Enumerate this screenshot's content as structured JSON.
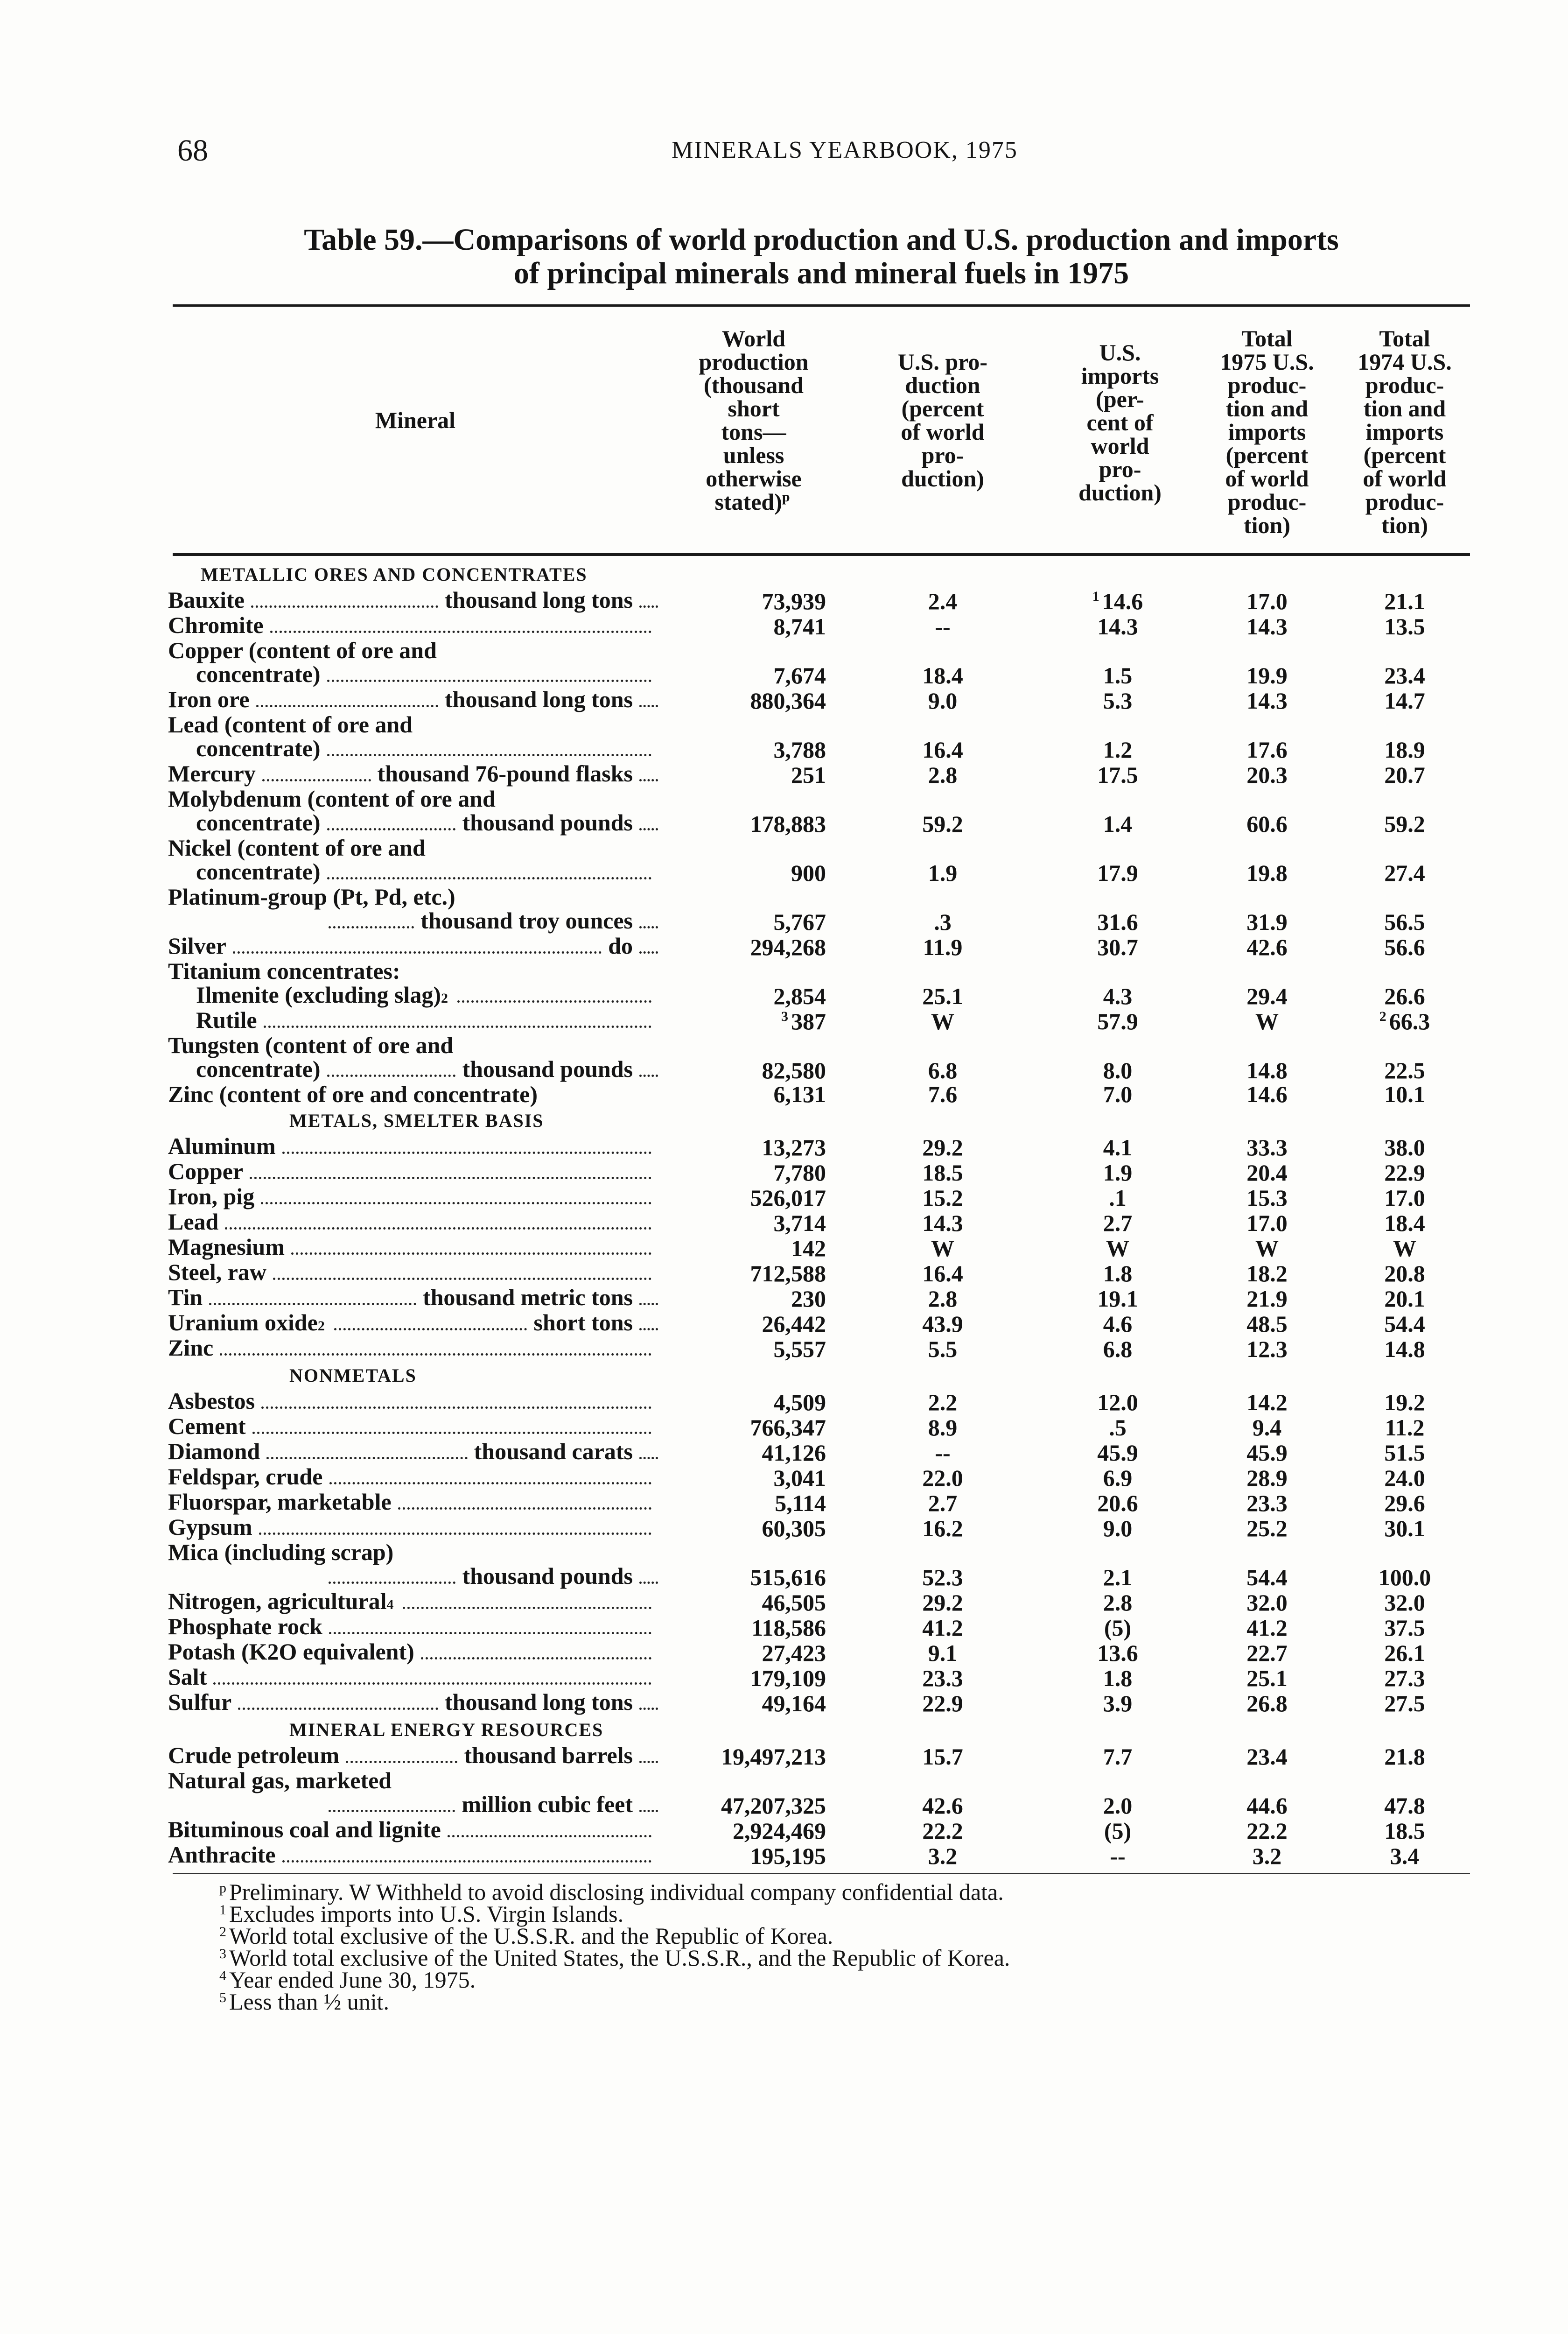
{
  "page": {
    "number": "68",
    "running_head": "MINERALS YEARBOOK, 1975"
  },
  "table": {
    "title_line1": "Table 59.—Comparisons of world production and U.S. production and imports",
    "title_line2": "of principal minerals and mineral fuels in 1975",
    "columns": [
      "Mineral",
      "World\nproduction\n(thousand\nshort\ntons—\nunless\notherwise\nstated)",
      "U.S. pro-\nduction\n(percent\nof world\npro-\nduction)",
      "U.S.\nimports\n(per-\ncent of\nworld\npro-\nduction)",
      "Total\n1975 U.S.\nproduc-\ntion and\nimports\n(percent\nof world\nproduc-\ntion)",
      "Total\n1974 U.S.\nproduc-\ntion and\nimports\n(percent\nof world\nproduc-\ntion)"
    ],
    "world_header_sup": "p",
    "sections": [
      {
        "heading": "METALLIC ORES AND CONCENTRATES",
        "rows": [
          {
            "pre": [],
            "label": "Bauxite",
            "unit": "thousand long tons",
            "values": [
              "73,939",
              "2.4",
              "14.6",
              "17.0",
              "21.1"
            ],
            "value_notes": [
              "",
              "",
              "1",
              "",
              ""
            ]
          },
          {
            "pre": [],
            "label": "Chromite",
            "unit": "",
            "values": [
              "8,741",
              "--",
              "14.3",
              "14.3",
              "13.5"
            ]
          },
          {
            "pre": [
              "Copper (content of ore and"
            ],
            "label": "concentrate)",
            "indent": 1,
            "unit": "",
            "values": [
              "7,674",
              "18.4",
              "1.5",
              "19.9",
              "23.4"
            ]
          },
          {
            "pre": [],
            "label": "Iron ore",
            "unit": "thousand long tons",
            "values": [
              "880,364",
              "9.0",
              "5.3",
              "14.3",
              "14.7"
            ]
          },
          {
            "pre": [
              "Lead (content of ore and"
            ],
            "label": "concentrate)",
            "indent": 1,
            "unit": "",
            "values": [
              "3,788",
              "16.4",
              "1.2",
              "17.6",
              "18.9"
            ]
          },
          {
            "pre": [],
            "label": "Mercury",
            "unit": "thousand 76-pound flasks",
            "values": [
              "251",
              "2.8",
              "17.5",
              "20.3",
              "20.7"
            ]
          },
          {
            "pre": [
              "Molybdenum (content of ore and"
            ],
            "label": "concentrate)",
            "indent": 1,
            "unit": "thousand pounds",
            "values": [
              "178,883",
              "59.2",
              "1.4",
              "60.6",
              "59.2"
            ]
          },
          {
            "pre": [
              "Nickel (content of ore and"
            ],
            "label": "concentrate)",
            "indent": 1,
            "unit": "",
            "values": [
              "900",
              "1.9",
              "17.9",
              "19.8",
              "27.4"
            ]
          },
          {
            "pre": [
              "Platinum-group (Pt, Pd, etc.)"
            ],
            "label": "",
            "indent": 2,
            "unit": "thousand troy ounces",
            "values": [
              "5,767",
              ".3",
              "31.6",
              "31.9",
              "56.5"
            ]
          },
          {
            "pre": [],
            "label": "Silver",
            "unit": "do",
            "values": [
              "294,268",
              "11.9",
              "30.7",
              "42.6",
              "56.6"
            ]
          },
          {
            "pre": [],
            "label": "Titanium concentrates:",
            "nolead": true,
            "values": []
          },
          {
            "pre": [],
            "label": "Ilmenite (excluding slag)",
            "label_note": "2",
            "indent": 1,
            "unit": "",
            "values": [
              "2,854",
              "25.1",
              "4.3",
              "29.4",
              "26.6"
            ]
          },
          {
            "pre": [],
            "label": "Rutile",
            "indent": 1,
            "unit": "",
            "values": [
              "387",
              "W",
              "57.9",
              "W",
              "66.3"
            ],
            "value_notes": [
              "3",
              "",
              "",
              "",
              "2"
            ]
          },
          {
            "pre": [
              "Tungsten (content of ore and"
            ],
            "label": "concentrate)",
            "indent": 1,
            "unit": "thousand pounds",
            "values": [
              "82,580",
              "6.8",
              "8.0",
              "14.8",
              "22.5"
            ]
          },
          {
            "pre": [],
            "label": "Zinc (content of ore and concentrate)",
            "nolead": true,
            "values": [
              "6,131",
              "7.6",
              "7.0",
              "14.6",
              "10.1"
            ]
          }
        ]
      },
      {
        "heading": "METALS, SMELTER BASIS",
        "rows": [
          {
            "pre": [],
            "label": "Aluminum",
            "values": [
              "13,273",
              "29.2",
              "4.1",
              "33.3",
              "38.0"
            ]
          },
          {
            "pre": [],
            "label": "Copper",
            "values": [
              "7,780",
              "18.5",
              "1.9",
              "20.4",
              "22.9"
            ]
          },
          {
            "pre": [],
            "label": "Iron, pig",
            "values": [
              "526,017",
              "15.2",
              ".1",
              "15.3",
              "17.0"
            ]
          },
          {
            "pre": [],
            "label": "Lead",
            "values": [
              "3,714",
              "14.3",
              "2.7",
              "17.0",
              "18.4"
            ]
          },
          {
            "pre": [],
            "label": "Magnesium",
            "values": [
              "142",
              "W",
              "W",
              "W",
              "W"
            ]
          },
          {
            "pre": [],
            "label": "Steel, raw",
            "values": [
              "712,588",
              "16.4",
              "1.8",
              "18.2",
              "20.8"
            ]
          },
          {
            "pre": [],
            "label": "Tin",
            "unit": "thousand metric tons",
            "values": [
              "230",
              "2.8",
              "19.1",
              "21.9",
              "20.1"
            ]
          },
          {
            "pre": [],
            "label": "Uranium oxide",
            "label_note": "2",
            "unit": "short tons",
            "values": [
              "26,442",
              "43.9",
              "4.6",
              "48.5",
              "54.4"
            ]
          },
          {
            "pre": [],
            "label": "Zinc",
            "values": [
              "5,557",
              "5.5",
              "6.8",
              "12.3",
              "14.8"
            ]
          }
        ]
      },
      {
        "heading": "NONMETALS",
        "rows": [
          {
            "pre": [],
            "label": "Asbestos",
            "values": [
              "4,509",
              "2.2",
              "12.0",
              "14.2",
              "19.2"
            ]
          },
          {
            "pre": [],
            "label": "Cement",
            "values": [
              "766,347",
              "8.9",
              ".5",
              "9.4",
              "11.2"
            ]
          },
          {
            "pre": [],
            "label": "Diamond",
            "unit": "thousand carats",
            "values": [
              "41,126",
              "--",
              "45.9",
              "45.9",
              "51.5"
            ]
          },
          {
            "pre": [],
            "label": "Feldspar, crude",
            "values": [
              "3,041",
              "22.0",
              "6.9",
              "28.9",
              "24.0"
            ]
          },
          {
            "pre": [],
            "label": "Fluorspar, marketable",
            "values": [
              "5,114",
              "2.7",
              "20.6",
              "23.3",
              "29.6"
            ]
          },
          {
            "pre": [],
            "label": "Gypsum",
            "values": [
              "60,305",
              "16.2",
              "9.0",
              "25.2",
              "30.1"
            ]
          },
          {
            "pre": [
              "Mica (including scrap)"
            ],
            "label": "",
            "indent": 2,
            "unit": "thousand pounds",
            "values": [
              "515,616",
              "52.3",
              "2.1",
              "54.4",
              "100.0"
            ]
          },
          {
            "pre": [],
            "label": "Nitrogen, agricultural",
            "label_note": "4",
            "values": [
              "46,505",
              "29.2",
              "2.8",
              "32.0",
              "32.0"
            ]
          },
          {
            "pre": [],
            "label": "Phosphate rock",
            "values": [
              "118,586",
              "41.2",
              "(5)",
              "41.2",
              "37.5"
            ]
          },
          {
            "pre": [],
            "label": "Potash (K2O equivalent)",
            "values": [
              "27,423",
              "9.1",
              "13.6",
              "22.7",
              "26.1"
            ]
          },
          {
            "pre": [],
            "label": "Salt",
            "values": [
              "179,109",
              "23.3",
              "1.8",
              "25.1",
              "27.3"
            ]
          },
          {
            "pre": [],
            "label": "Sulfur",
            "unit": "thousand long tons",
            "values": [
              "49,164",
              "22.9",
              "3.9",
              "26.8",
              "27.5"
            ]
          }
        ]
      },
      {
        "heading": "MINERAL ENERGY RESOURCES",
        "rows": [
          {
            "pre": [],
            "label": "Crude petroleum",
            "unit": "thousand barrels",
            "values": [
              "19,497,213",
              "15.7",
              "7.7",
              "23.4",
              "21.8"
            ]
          },
          {
            "pre": [
              "Natural gas, marketed"
            ],
            "label": "",
            "indent": 2,
            "unit": "million cubic feet",
            "values": [
              "47,207,325",
              "42.6",
              "2.0",
              "44.6",
              "47.8"
            ]
          },
          {
            "pre": [],
            "label": "Bituminous coal and lignite",
            "values": [
              "2,924,469",
              "22.2",
              "(5)",
              "22.2",
              "18.5"
            ]
          },
          {
            "pre": [],
            "label": "Anthracite",
            "values": [
              "195,195",
              "3.2",
              "--",
              "3.2",
              "3.4"
            ]
          }
        ]
      }
    ],
    "footnotes": [
      {
        "mark": "p",
        "text": "Preliminary.    W Withheld to avoid disclosing individual company confidential data."
      },
      {
        "mark": "1",
        "text": "Excludes imports into U.S. Virgin Islands."
      },
      {
        "mark": "2",
        "text": "World total exclusive of the U.S.S.R. and the Republic of Korea."
      },
      {
        "mark": "3",
        "text": "World total exclusive of the United States, the U.S.S.R., and the Republic of Korea."
      },
      {
        "mark": "4",
        "text": "Year ended June 30, 1975."
      },
      {
        "mark": "5",
        "text": "Less than ½ unit."
      }
    ]
  }
}
